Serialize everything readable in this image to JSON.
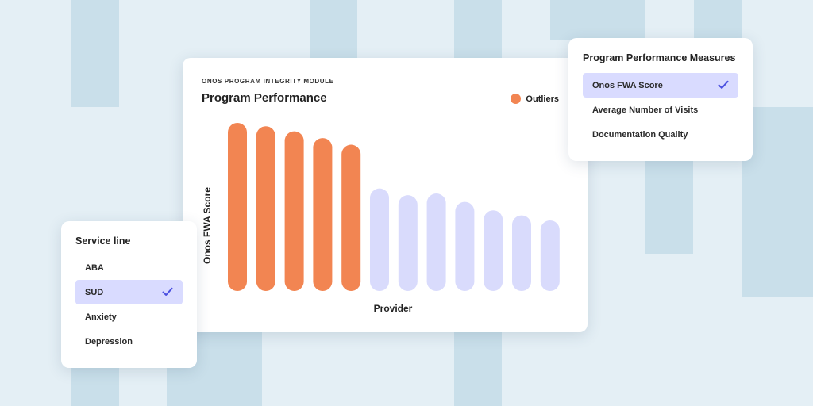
{
  "chart_card": {
    "module_label": "ONOS PROGRAM INTEGRITY MODULE",
    "title": "Program Performance",
    "legend_label": "Outliers"
  },
  "chart_data": {
    "type": "bar",
    "title": "Program Performance",
    "xlabel": "Provider",
    "ylabel": "Onos FWA Score",
    "values": [
      100,
      98,
      95,
      91,
      87,
      61,
      57,
      58,
      53,
      48,
      45,
      42
    ],
    "outlier": [
      true,
      true,
      true,
      true,
      true,
      false,
      false,
      false,
      false,
      false,
      false,
      false
    ],
    "ylim": [
      0,
      100
    ],
    "legend": [
      {
        "name": "Outliers",
        "color": "#f28552"
      }
    ],
    "colors": {
      "outlier": "#f28552",
      "normal": "#d9dbfc"
    },
    "grid": false
  },
  "measures_panel": {
    "title": "Program Performance Measures",
    "options": [
      {
        "label": "Onos FWA Score",
        "selected": true
      },
      {
        "label": "Average Number of Visits",
        "selected": false
      },
      {
        "label": "Documentation Quality",
        "selected": false
      }
    ]
  },
  "service_panel": {
    "title": "Service line",
    "options": [
      {
        "label": "ABA",
        "selected": false
      },
      {
        "label": "SUD",
        "selected": true
      },
      {
        "label": "Anxiety",
        "selected": false
      },
      {
        "label": "Depression",
        "selected": false
      }
    ]
  },
  "icons": {
    "check": "check-icon",
    "legend_dot": "legend-dot-icon"
  },
  "colors": {
    "accent_check": "#4a4fe0",
    "selected_bg": "#d9dbff"
  }
}
